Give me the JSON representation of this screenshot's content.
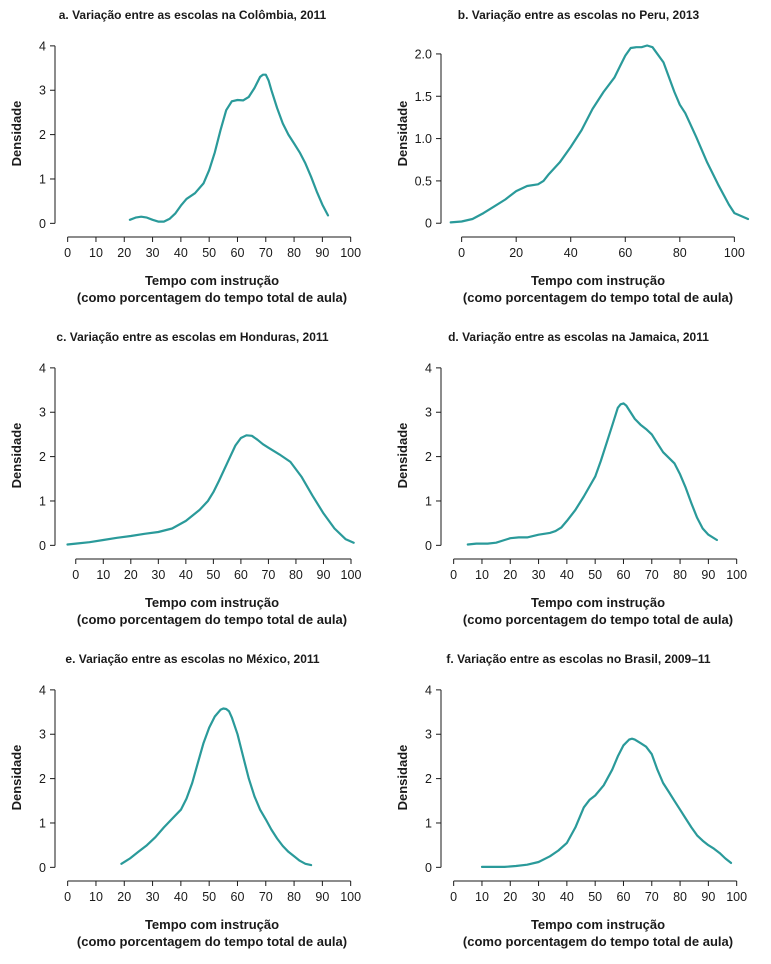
{
  "colors": {
    "line": "#2a9a9a",
    "axis": "#1a1a1a"
  },
  "chart_data": [
    {
      "type": "line",
      "title": "a. Variação entre as escolas na Colômbia, 2011",
      "xlabel": "Tempo com instrução",
      "xlabel2": "(como porcentagem do tempo total de aula)",
      "ylabel": "Densidade",
      "xlim": [
        -2,
        104
      ],
      "ylim": [
        -0.15,
        4.2
      ],
      "xticks": [
        0,
        10,
        20,
        30,
        40,
        50,
        60,
        70,
        80,
        90,
        100
      ],
      "yticks": [
        0,
        1,
        2,
        3,
        4
      ],
      "ytick_labels": [
        "0",
        "1",
        "2",
        "3",
        "4"
      ],
      "series": [
        {
          "x": [
            22,
            24,
            26,
            28,
            30,
            32,
            34,
            36,
            38,
            40,
            42,
            45,
            48,
            50,
            52,
            54,
            56,
            58,
            60,
            62,
            64,
            66,
            68,
            69,
            70,
            71,
            72,
            74,
            76,
            78,
            80,
            82,
            84,
            86,
            88,
            90,
            92
          ],
          "y": [
            0.08,
            0.13,
            0.15,
            0.13,
            0.08,
            0.04,
            0.04,
            0.1,
            0.22,
            0.4,
            0.55,
            0.68,
            0.9,
            1.2,
            1.6,
            2.1,
            2.55,
            2.75,
            2.78,
            2.77,
            2.85,
            3.05,
            3.3,
            3.35,
            3.35,
            3.22,
            3.0,
            2.6,
            2.25,
            2.0,
            1.8,
            1.6,
            1.35,
            1.05,
            0.72,
            0.42,
            0.18
          ]
        }
      ]
    },
    {
      "type": "line",
      "title": "b. Variação entre as escolas no Peru, 2013",
      "xlabel": "Tempo com instrução",
      "xlabel2": "(como porcentagem do tempo total de aula)",
      "ylabel": "Densidade",
      "xlim": [
        -5,
        105
      ],
      "ylim": [
        -0.08,
        2.2
      ],
      "xticks": [
        0,
        20,
        40,
        60,
        80,
        100
      ],
      "yticks": [
        0,
        0.5,
        1.0,
        1.5,
        2.0
      ],
      "ytick_labels": [
        "0",
        "0.5",
        "1.0",
        "1.5",
        "2.0"
      ],
      "series": [
        {
          "x": [
            -4,
            0,
            4,
            8,
            12,
            16,
            20,
            24,
            28,
            30,
            32,
            36,
            40,
            44,
            48,
            52,
            56,
            58,
            60,
            62,
            64,
            66,
            68,
            70,
            74,
            78,
            80,
            82,
            86,
            90,
            94,
            98,
            100,
            105
          ],
          "y": [
            0.01,
            0.02,
            0.05,
            0.12,
            0.2,
            0.28,
            0.38,
            0.44,
            0.46,
            0.5,
            0.58,
            0.72,
            0.9,
            1.1,
            1.35,
            1.55,
            1.72,
            1.85,
            1.98,
            2.07,
            2.08,
            2.08,
            2.1,
            2.08,
            1.9,
            1.55,
            1.4,
            1.3,
            1.02,
            0.72,
            0.46,
            0.22,
            0.12,
            0.05
          ]
        }
      ]
    },
    {
      "type": "line",
      "title": "c. Variação entre as escolas em Honduras, 2011",
      "xlabel": "Tempo com instrução",
      "xlabel2": "(como porcentagem do tempo total de aula)",
      "ylabel": "Densidade",
      "xlim": [
        -5,
        104
      ],
      "ylim": [
        -0.15,
        4.2
      ],
      "xticks": [
        0,
        10,
        20,
        30,
        40,
        50,
        60,
        70,
        80,
        90,
        100
      ],
      "yticks": [
        0,
        1,
        2,
        3,
        4
      ],
      "ytick_labels": [
        "0",
        "1",
        "2",
        "3",
        "4"
      ],
      "series": [
        {
          "x": [
            -3,
            0,
            5,
            10,
            15,
            20,
            25,
            30,
            35,
            40,
            45,
            48,
            50,
            52,
            55,
            58,
            60,
            62,
            64,
            66,
            68,
            70,
            74,
            78,
            82,
            86,
            90,
            94,
            98,
            101
          ],
          "y": [
            0.02,
            0.04,
            0.07,
            0.12,
            0.17,
            0.21,
            0.26,
            0.3,
            0.38,
            0.55,
            0.8,
            1.0,
            1.2,
            1.45,
            1.85,
            2.25,
            2.42,
            2.48,
            2.47,
            2.38,
            2.28,
            2.2,
            2.05,
            1.88,
            1.55,
            1.12,
            0.72,
            0.38,
            0.14,
            0.06
          ]
        }
      ]
    },
    {
      "type": "line",
      "title": "d. Variação entre as escolas na Jamaica, 2011",
      "xlabel": "Tempo com instrução",
      "xlabel2": "(como porcentagem do tempo total de aula)",
      "ylabel": "Densidade",
      "xlim": [
        -2,
        104
      ],
      "ylim": [
        -0.15,
        4.2
      ],
      "xticks": [
        0,
        10,
        20,
        30,
        40,
        50,
        60,
        70,
        80,
        90,
        100
      ],
      "yticks": [
        0,
        1,
        2,
        3,
        4
      ],
      "ytick_labels": [
        "0",
        "1",
        "2",
        "3",
        "4"
      ],
      "series": [
        {
          "x": [
            5,
            8,
            12,
            15,
            18,
            20,
            23,
            26,
            30,
            34,
            36,
            38,
            40,
            43,
            46,
            50,
            52,
            54,
            56,
            58,
            59,
            60,
            61,
            62,
            64,
            66,
            68,
            70,
            72,
            74,
            78,
            80,
            82,
            84,
            86,
            88,
            90,
            93
          ],
          "y": [
            0.02,
            0.04,
            0.04,
            0.06,
            0.12,
            0.16,
            0.18,
            0.18,
            0.24,
            0.28,
            0.32,
            0.4,
            0.55,
            0.8,
            1.1,
            1.55,
            1.9,
            2.3,
            2.7,
            3.1,
            3.18,
            3.2,
            3.15,
            3.05,
            2.85,
            2.72,
            2.62,
            2.5,
            2.3,
            2.1,
            1.85,
            1.6,
            1.3,
            0.95,
            0.62,
            0.38,
            0.24,
            0.12
          ]
        }
      ]
    },
    {
      "type": "line",
      "title": "e. Variação entre as escolas no México, 2011",
      "xlabel": "Tempo com instrução",
      "xlabel2": "(como porcentagem do tempo total de aula)",
      "ylabel": "Densidade",
      "xlim": [
        -2,
        104
      ],
      "ylim": [
        -0.15,
        4.2
      ],
      "xticks": [
        0,
        10,
        20,
        30,
        40,
        50,
        60,
        70,
        80,
        90,
        100
      ],
      "yticks": [
        0,
        1,
        2,
        3,
        4
      ],
      "ytick_labels": [
        "0",
        "1",
        "2",
        "3",
        "4"
      ],
      "series": [
        {
          "x": [
            19,
            22,
            25,
            28,
            31,
            34,
            37,
            40,
            42,
            44,
            46,
            48,
            50,
            52,
            54,
            55,
            56,
            57,
            58,
            60,
            62,
            64,
            66,
            68,
            70,
            72,
            74,
            76,
            78,
            80,
            82,
            84,
            86
          ],
          "y": [
            0.08,
            0.2,
            0.35,
            0.5,
            0.68,
            0.9,
            1.1,
            1.3,
            1.55,
            1.9,
            2.35,
            2.8,
            3.15,
            3.4,
            3.55,
            3.58,
            3.57,
            3.52,
            3.38,
            3.0,
            2.5,
            2.0,
            1.6,
            1.3,
            1.08,
            0.85,
            0.65,
            0.48,
            0.35,
            0.25,
            0.15,
            0.08,
            0.05
          ]
        }
      ]
    },
    {
      "type": "line",
      "title": "f. Variação entre as escolas no Brasil, 2009–11",
      "xlabel": "Tempo com instrução",
      "xlabel2": "(como porcentagem do tempo total de aula)",
      "ylabel": "Densidade",
      "xlim": [
        -2,
        104
      ],
      "ylim": [
        -0.15,
        4.2
      ],
      "xticks": [
        0,
        10,
        20,
        30,
        40,
        50,
        60,
        70,
        80,
        90,
        100
      ],
      "yticks": [
        0,
        1,
        2,
        3,
        4
      ],
      "ytick_labels": [
        "0",
        "1",
        "2",
        "3",
        "4"
      ],
      "series": [
        {
          "x": [
            10,
            14,
            18,
            22,
            26,
            30,
            34,
            37,
            40,
            43,
            46,
            48,
            50,
            53,
            56,
            58,
            60,
            62,
            63,
            64,
            66,
            68,
            70,
            72,
            74,
            76,
            78,
            80,
            82,
            84,
            86,
            88,
            90,
            92,
            94,
            96,
            98
          ],
          "y": [
            0.01,
            0.01,
            0.01,
            0.03,
            0.06,
            0.12,
            0.25,
            0.38,
            0.55,
            0.9,
            1.35,
            1.52,
            1.62,
            1.85,
            2.2,
            2.5,
            2.75,
            2.88,
            2.9,
            2.88,
            2.8,
            2.72,
            2.55,
            2.2,
            1.9,
            1.7,
            1.5,
            1.3,
            1.1,
            0.9,
            0.72,
            0.6,
            0.5,
            0.42,
            0.32,
            0.2,
            0.1
          ]
        }
      ]
    }
  ]
}
